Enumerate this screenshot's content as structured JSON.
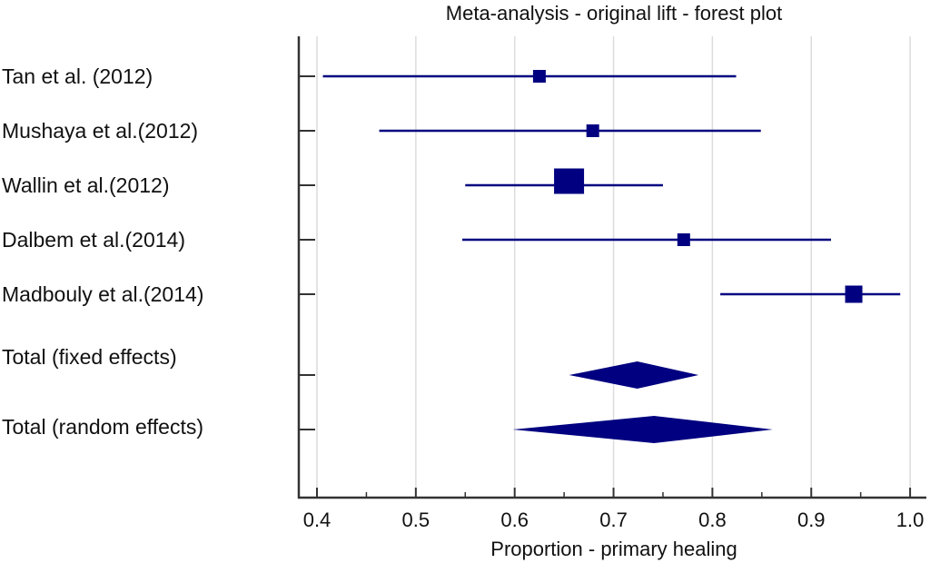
{
  "chart_data": {
    "type": "forest",
    "title": "Meta-analysis - original lift - forest plot",
    "xlabel": "Proportion - primary healing",
    "ylabel": "",
    "xlim": [
      0.38,
      1.015
    ],
    "xticks": [
      0.4,
      0.5,
      0.6,
      0.7,
      0.8,
      0.9,
      1.0
    ],
    "xtick_labels": [
      "0.4",
      "0.5",
      "0.6",
      "0.7",
      "0.8",
      "0.9",
      "1.0"
    ],
    "minor_ticks": [
      0.45,
      0.55,
      0.65,
      0.75,
      0.85,
      0.95
    ],
    "grid": true,
    "color": "#000080",
    "studies": [
      {
        "label": "Tan et al. (2012)",
        "estimate": 0.625,
        "lower": 0.406,
        "upper": 0.824,
        "weight": "small"
      },
      {
        "label": "Mushaya et al.(2012)",
        "estimate": 0.679,
        "lower": 0.463,
        "upper": 0.849,
        "weight": "small"
      },
      {
        "label": "Wallin et al.(2012)",
        "estimate": 0.655,
        "lower": 0.55,
        "upper": 0.75,
        "weight": "large"
      },
      {
        "label": "Dalbem et al.(2014)",
        "estimate": 0.771,
        "lower": 0.547,
        "upper": 0.92,
        "weight": "small"
      },
      {
        "label": "Madbouly et al.(2014)",
        "estimate": 0.943,
        "lower": 0.808,
        "upper": 0.99,
        "weight": "medium"
      }
    ],
    "pooled": [
      {
        "label": "Total (fixed effects)",
        "estimate": 0.724,
        "lower": 0.655,
        "upper": 0.786
      },
      {
        "label": "Total (random effects)",
        "estimate": 0.741,
        "lower": 0.598,
        "upper": 0.861
      }
    ]
  }
}
